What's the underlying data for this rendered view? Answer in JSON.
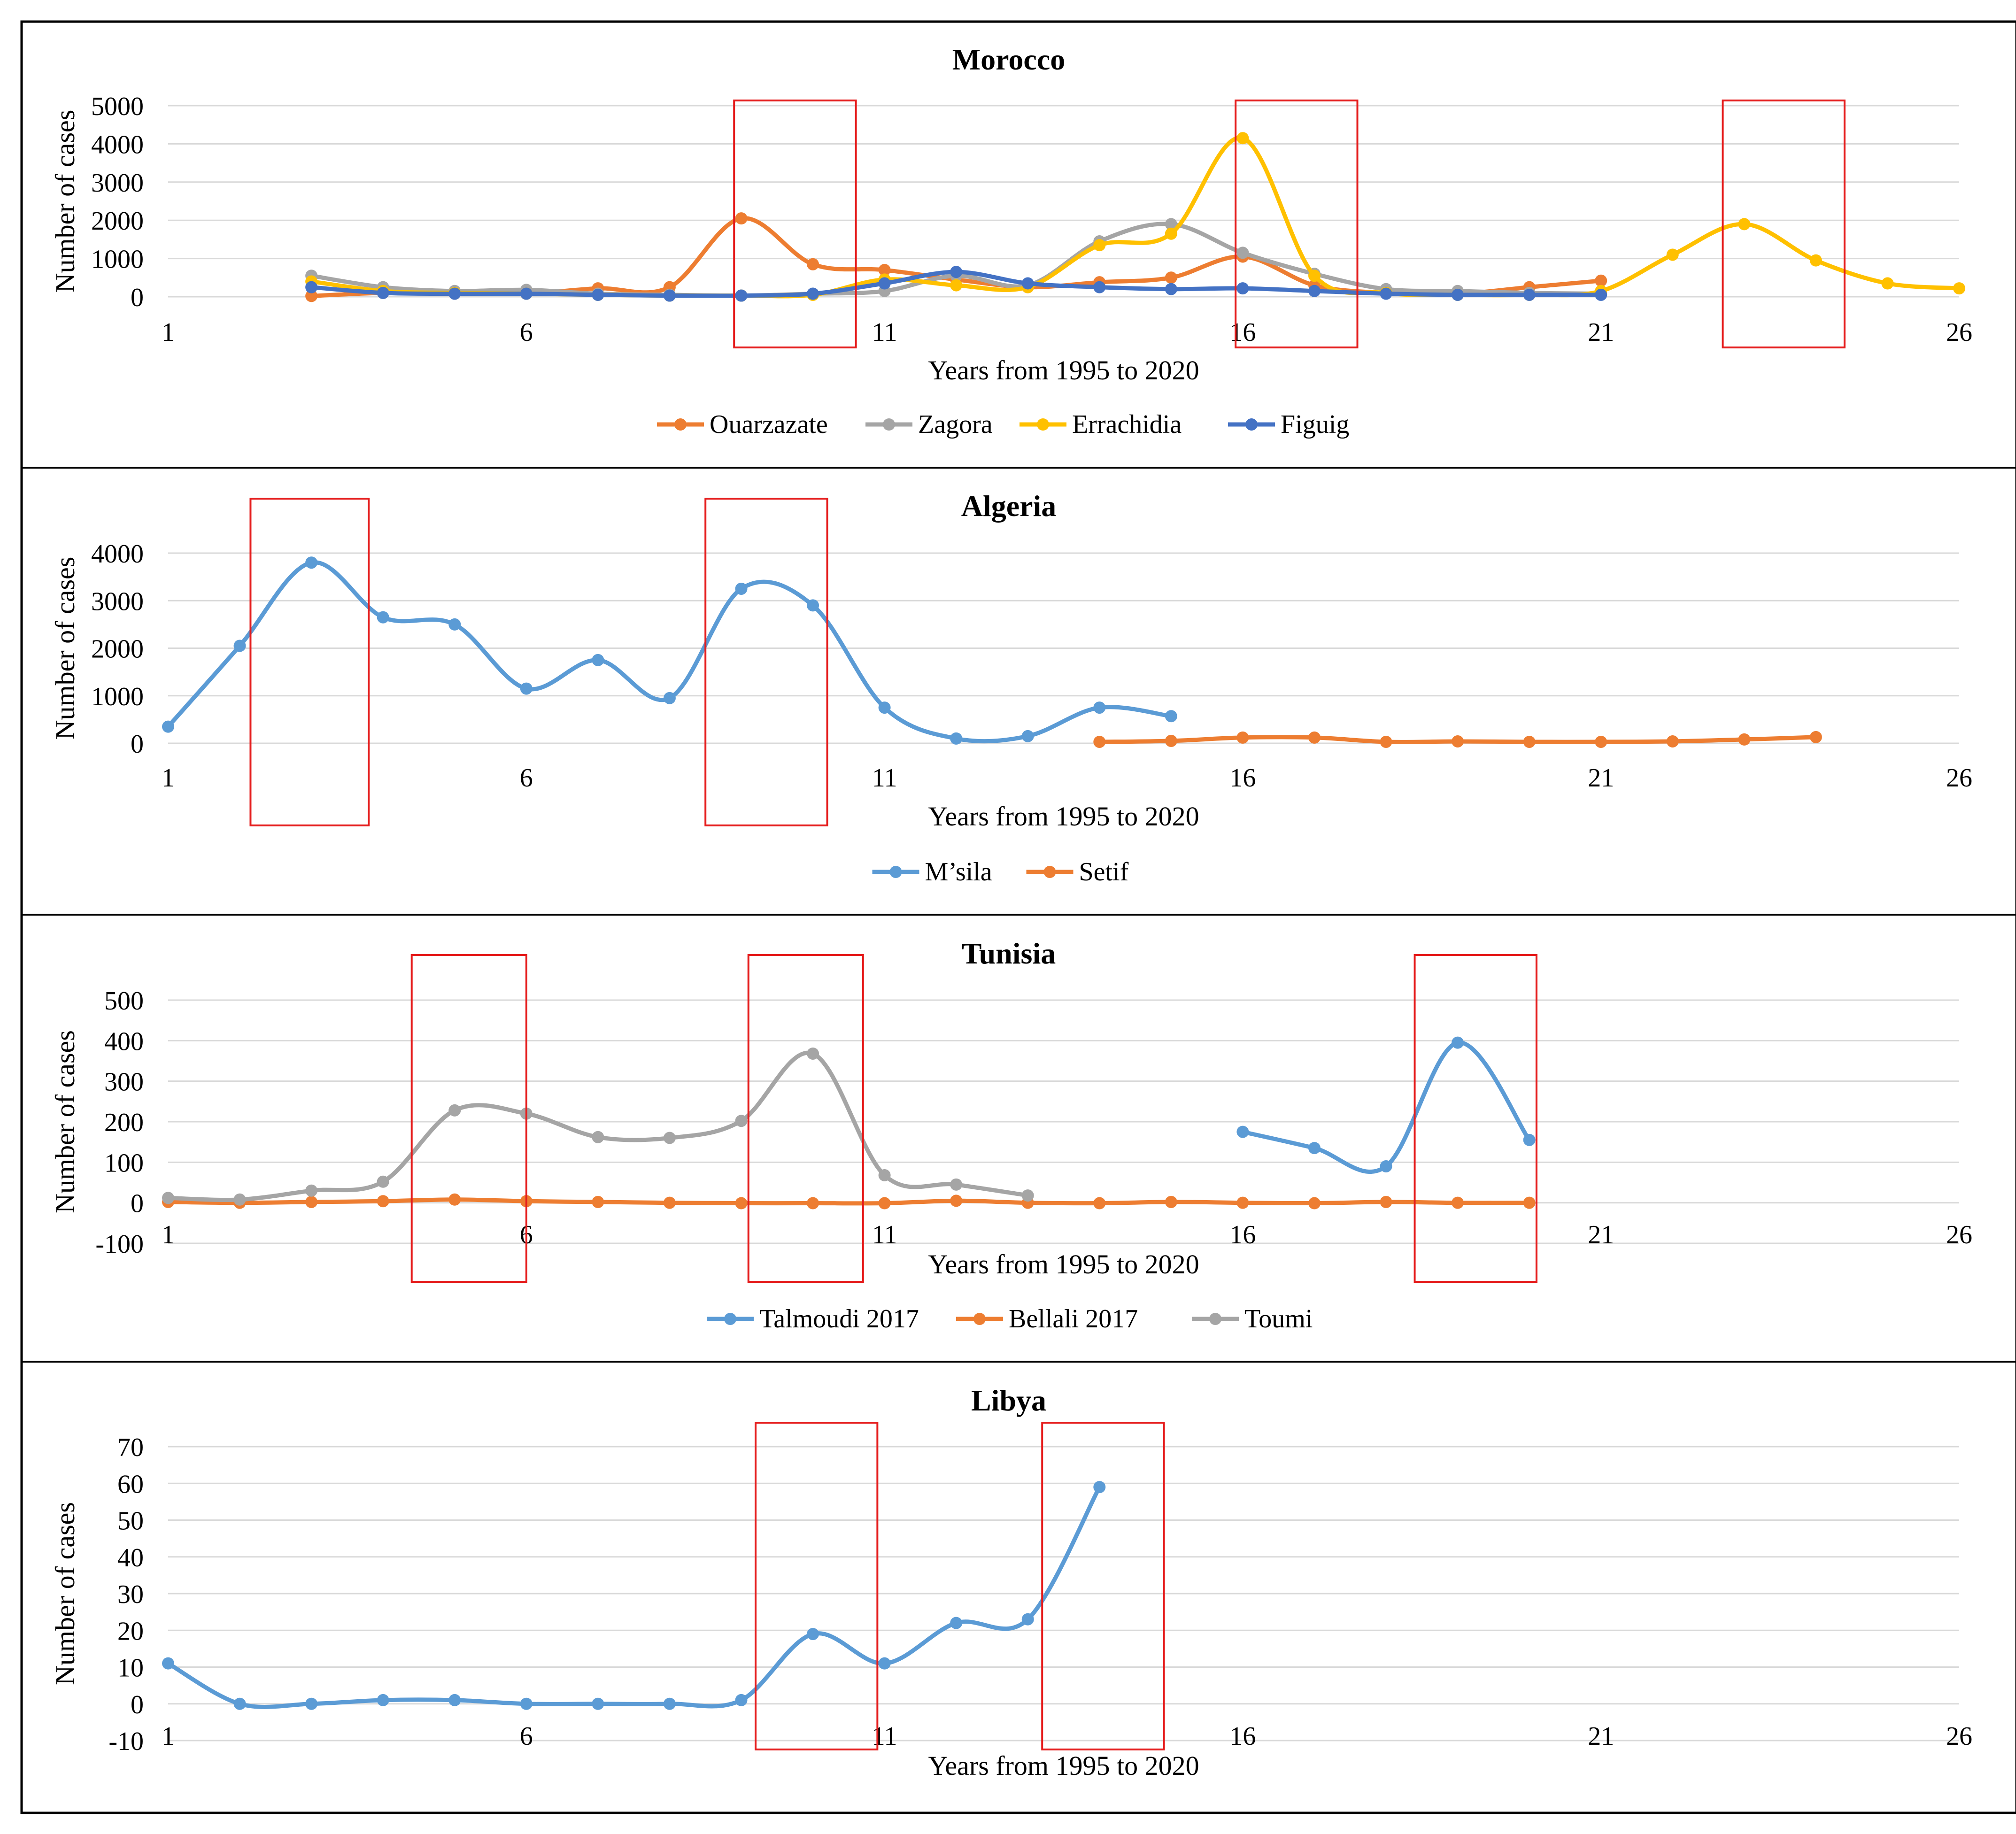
{
  "figure": {
    "xlabel": "Years from 1995 to 2020",
    "ylabel": "Number of cases",
    "colors": {
      "blue": "#5b9bd5",
      "orange": "#ed7d31",
      "gray": "#a5a5a5",
      "yellow": "#ffc000",
      "darkblue": "#4472c4",
      "highlight_box": "#e51c1c",
      "gridline": "#d9d9d9"
    }
  },
  "chart_data": [
    {
      "type": "line",
      "title": "Morocco",
      "xlabel": "Years from 1995 to 2020",
      "ylabel": "Number of cases",
      "xlim": [
        1,
        26
      ],
      "xticks": [
        1,
        6,
        11,
        16,
        21,
        26
      ],
      "ylim": [
        0,
        5000
      ],
      "yticks": [
        0,
        1000,
        2000,
        3000,
        4000,
        5000
      ],
      "grid": true,
      "legend": "bottom",
      "highlight_ranges": [
        [
          8.9,
          10.6
        ],
        [
          15.9,
          17.6
        ],
        [
          22.7,
          24.4
        ]
      ],
      "series": [
        {
          "name": "Ouarzazate",
          "color": "#ed7d31",
          "x": [
            3,
            4,
            5,
            6,
            7,
            8,
            9,
            10,
            11,
            12,
            13,
            14,
            15,
            16,
            17,
            18,
            19,
            20,
            21
          ],
          "y": [
            20,
            100,
            80,
            80,
            220,
            250,
            2050,
            850,
            700,
            450,
            250,
            380,
            500,
            1050,
            300,
            100,
            80,
            250,
            420
          ]
        },
        {
          "name": "Zagora",
          "color": "#a5a5a5",
          "x": [
            3,
            4,
            5,
            6,
            7,
            8,
            9,
            10,
            11,
            12,
            13,
            14,
            15,
            16,
            17,
            18,
            19,
            20,
            21
          ],
          "y": [
            550,
            250,
            150,
            180,
            80,
            50,
            30,
            80,
            150,
            550,
            300,
            1450,
            1900,
            1150,
            600,
            200,
            150,
            100,
            80
          ]
        },
        {
          "name": "Errachidia",
          "color": "#ffc000",
          "x": [
            3,
            4,
            5,
            6,
            7,
            8,
            9,
            10,
            11,
            12,
            13,
            14,
            15,
            16,
            17,
            18,
            19,
            20,
            21,
            22,
            23,
            24,
            25,
            26
          ],
          "y": [
            400,
            150,
            100,
            80,
            50,
            30,
            30,
            50,
            450,
            300,
            250,
            1350,
            1650,
            4150,
            550,
            100,
            50,
            50,
            150,
            1100,
            1900,
            950,
            350,
            220
          ]
        },
        {
          "name": "Figuig",
          "color": "#4472c4",
          "x": [
            3,
            4,
            5,
            6,
            7,
            8,
            9,
            10,
            11,
            12,
            13,
            14,
            15,
            16,
            17,
            18,
            19,
            20,
            21
          ],
          "y": [
            250,
            100,
            80,
            80,
            50,
            30,
            30,
            80,
            350,
            650,
            350,
            250,
            200,
            220,
            150,
            80,
            50,
            50,
            50
          ]
        }
      ]
    },
    {
      "type": "line",
      "title": "Algeria",
      "xlabel": "Years from 1995 to 2020",
      "ylabel": "Number of cases",
      "xlim": [
        1,
        26
      ],
      "xticks": [
        1,
        6,
        11,
        16,
        21,
        26
      ],
      "ylim": [
        0,
        4000
      ],
      "yticks": [
        0,
        1000,
        2000,
        3000,
        4000
      ],
      "grid": true,
      "legend": "bottom",
      "highlight_ranges": [
        [
          2.15,
          3.8
        ],
        [
          8.5,
          10.2
        ]
      ],
      "series": [
        {
          "name": "M’sila",
          "color": "#5b9bd5",
          "x": [
            1,
            2,
            3,
            4,
            5,
            6,
            7,
            8,
            9,
            10,
            11,
            12,
            13,
            14,
            15
          ],
          "y": [
            350,
            2050,
            3800,
            2650,
            2500,
            1150,
            1750,
            950,
            3250,
            2900,
            750,
            100,
            150,
            750,
            570
          ]
        },
        {
          "name": "Setif",
          "color": "#ed7d31",
          "x": [
            14,
            15,
            16,
            17,
            18,
            19,
            20,
            21,
            22,
            23,
            24
          ],
          "y": [
            30,
            50,
            120,
            120,
            30,
            40,
            30,
            30,
            40,
            80,
            130
          ]
        }
      ]
    },
    {
      "type": "line",
      "title": "Tunisia",
      "xlabel": "Years from 1995 to 2020",
      "ylabel": "Number of cases",
      "xlim": [
        1,
        26
      ],
      "xticks": [
        1,
        6,
        11,
        16,
        21,
        26
      ],
      "ylim": [
        -100,
        500
      ],
      "yticks": [
        -100,
        0,
        100,
        200,
        300,
        400,
        500
      ],
      "grid": true,
      "legend": "bottom",
      "highlight_ranges": [
        [
          4.4,
          6.0
        ],
        [
          9.1,
          10.7
        ],
        [
          18.4,
          20.1
        ]
      ],
      "series": [
        {
          "name": "Talmoudi 2017",
          "color": "#5b9bd5",
          "x": [
            16,
            17,
            18,
            19,
            20
          ],
          "y": [
            175,
            135,
            90,
            395,
            155
          ]
        },
        {
          "name": "Bellali 2017",
          "color": "#ed7d31",
          "x": [
            1,
            2,
            3,
            4,
            5,
            6,
            7,
            8,
            9,
            10,
            11,
            12,
            13,
            14,
            15,
            16,
            17,
            18,
            19,
            20
          ],
          "y": [
            2,
            0,
            2,
            4,
            8,
            4,
            2,
            0,
            -1,
            -1,
            -1,
            5,
            0,
            -1,
            2,
            0,
            -1,
            2,
            0,
            0
          ]
        },
        {
          "name": "Toumi",
          "color": "#a5a5a5",
          "x": [
            1,
            2,
            3,
            4,
            5,
            6,
            7,
            8,
            9,
            10,
            11,
            12,
            13
          ],
          "y": [
            12,
            8,
            30,
            52,
            228,
            220,
            162,
            160,
            202,
            368,
            68,
            45,
            18
          ]
        }
      ]
    },
    {
      "type": "line",
      "title": "Libya",
      "xlabel": "Years from 1995 to 2020",
      "ylabel": "Number of cases",
      "xlim": [
        1,
        26
      ],
      "xticks": [
        1,
        6,
        11,
        16,
        21,
        26
      ],
      "ylim": [
        -10,
        70
      ],
      "yticks": [
        -10,
        0,
        10,
        20,
        30,
        40,
        50,
        60,
        70
      ],
      "grid": true,
      "legend": "none",
      "highlight_ranges": [
        [
          9.2,
          10.9
        ],
        [
          13.2,
          14.9
        ]
      ],
      "series": [
        {
          "name": "Libya",
          "color": "#5b9bd5",
          "x": [
            1,
            2,
            3,
            4,
            5,
            6,
            7,
            8,
            9,
            10,
            11,
            12,
            13,
            14
          ],
          "y": [
            11,
            0,
            0,
            1,
            1,
            0,
            0,
            0,
            1,
            19,
            11,
            22,
            23,
            59
          ]
        }
      ]
    }
  ]
}
